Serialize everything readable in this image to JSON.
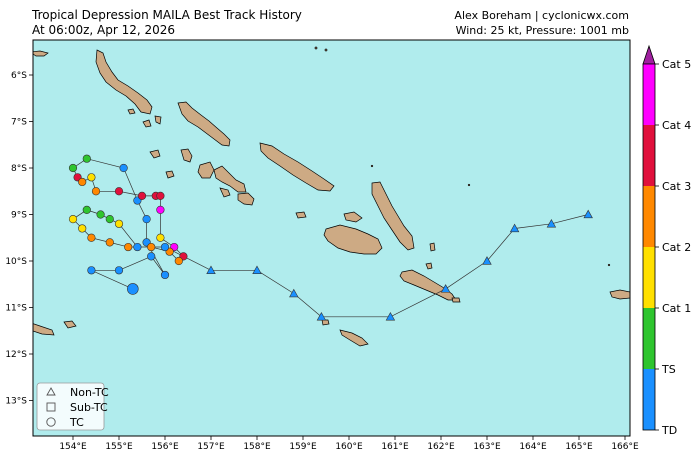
{
  "header": {
    "title_line1": "Tropical Depression MAILA Best Track History",
    "title_line2": "At 06:00z, Apr 12, 2026",
    "credit_line1": "Alex Boreham | cyclonicwx.com",
    "credit_line2": "Wind: 25 kt, Pressure: 1001 mb"
  },
  "map": {
    "lon_labels": [
      "154°E",
      "155°E",
      "156°E",
      "157°E",
      "158°E",
      "159°E",
      "160°E",
      "161°E",
      "162°E",
      "163°E",
      "164°E",
      "165°E",
      "166°E"
    ],
    "lat_labels": [
      "6°S",
      "7°S",
      "8°S",
      "9°S",
      "10°S",
      "11°S",
      "12°S",
      "13°S"
    ],
    "ocean_color": "#b0eced",
    "land_color": "#cdaa84"
  },
  "colorbar": {
    "labels": [
      "Cat 5",
      "Cat 4",
      "Cat 3",
      "Cat 2",
      "Cat 1",
      "TS",
      "TD"
    ],
    "colors": [
      "#ff00ff",
      "#e0103c",
      "#ff8800",
      "#ffe000",
      "#2ec52e",
      "#1a90ff"
    ],
    "arrow_color": "#a020a0"
  },
  "legend": {
    "items": [
      {
        "label": "Non-TC",
        "symbol": "triangle"
      },
      {
        "label": "Sub-TC",
        "symbol": "square"
      },
      {
        "label": "TC",
        "symbol": "circle"
      }
    ]
  },
  "track": {
    "colors": {
      "TD": "#1a90ff",
      "TS": "#2ec52e",
      "C1": "#ffe000",
      "C2": "#ff8800",
      "C3": "#e0103c",
      "C5": "#ff00ff"
    },
    "points": [
      {
        "lon": 155.3,
        "lat": -10.6,
        "cat": "TD",
        "sym": "circle",
        "big": true
      },
      {
        "lon": 154.4,
        "lat": -10.2,
        "cat": "TD",
        "sym": "circle"
      },
      {
        "lon": 155.0,
        "lat": -10.2,
        "cat": "TD",
        "sym": "circle"
      },
      {
        "lon": 155.7,
        "lat": -9.9,
        "cat": "TD",
        "sym": "circle"
      },
      {
        "lon": 156.0,
        "lat": -10.3,
        "cat": "TD",
        "sym": "circle"
      },
      {
        "lon": 155.6,
        "lat": -9.6,
        "cat": "TD",
        "sym": "circle"
      },
      {
        "lon": 155.6,
        "lat": -9.1,
        "cat": "TD",
        "sym": "circle"
      },
      {
        "lon": 155.4,
        "lat": -8.7,
        "cat": "TD",
        "sym": "circle"
      },
      {
        "lon": 155.1,
        "lat": -8.0,
        "cat": "TD",
        "sym": "circle"
      },
      {
        "lon": 154.3,
        "lat": -7.8,
        "cat": "TS",
        "sym": "circle"
      },
      {
        "lon": 154.0,
        "lat": -8.0,
        "cat": "TS",
        "sym": "circle"
      },
      {
        "lon": 154.1,
        "lat": -8.2,
        "cat": "C3",
        "sym": "circle"
      },
      {
        "lon": 154.2,
        "lat": -8.3,
        "cat": "C2",
        "sym": "circle"
      },
      {
        "lon": 154.4,
        "lat": -8.2,
        "cat": "C1",
        "sym": "circle"
      },
      {
        "lon": 154.5,
        "lat": -8.5,
        "cat": "C2",
        "sym": "circle"
      },
      {
        "lon": 155.0,
        "lat": -8.5,
        "cat": "C3",
        "sym": "circle"
      },
      {
        "lon": 155.5,
        "lat": -8.6,
        "cat": "C3",
        "sym": "circle"
      },
      {
        "lon": 155.8,
        "lat": -8.6,
        "cat": "C3",
        "sym": "circle"
      },
      {
        "lon": 155.9,
        "lat": -8.6,
        "cat": "C3",
        "sym": "circle"
      },
      {
        "lon": 155.9,
        "lat": -8.9,
        "cat": "C5",
        "sym": "circle"
      },
      {
        "lon": 155.9,
        "lat": -9.5,
        "cat": "C1",
        "sym": "circle"
      },
      {
        "lon": 156.2,
        "lat": -9.7,
        "cat": "C5",
        "sym": "circle"
      },
      {
        "lon": 156.4,
        "lat": -9.9,
        "cat": "C3",
        "sym": "circle"
      },
      {
        "lon": 156.3,
        "lat": -10.0,
        "cat": "C2",
        "sym": "circle"
      },
      {
        "lon": 156.1,
        "lat": -9.8,
        "cat": "C2",
        "sym": "circle"
      },
      {
        "lon": 155.7,
        "lat": -9.7,
        "cat": "C2",
        "sym": "circle"
      },
      {
        "lon": 155.2,
        "lat": -9.7,
        "cat": "C2",
        "sym": "circle"
      },
      {
        "lon": 154.8,
        "lat": -9.6,
        "cat": "C2",
        "sym": "circle"
      },
      {
        "lon": 154.4,
        "lat": -9.5,
        "cat": "C2",
        "sym": "circle"
      },
      {
        "lon": 154.2,
        "lat": -9.3,
        "cat": "C1",
        "sym": "circle"
      },
      {
        "lon": 154.0,
        "lat": -9.1,
        "cat": "C1",
        "sym": "circle"
      },
      {
        "lon": 154.3,
        "lat": -8.9,
        "cat": "TS",
        "sym": "circle"
      },
      {
        "lon": 154.6,
        "lat": -9.0,
        "cat": "TS",
        "sym": "circle"
      },
      {
        "lon": 154.8,
        "lat": -9.1,
        "cat": "TS",
        "sym": "circle"
      },
      {
        "lon": 155.0,
        "lat": -9.2,
        "cat": "C1",
        "sym": "circle"
      },
      {
        "lon": 155.4,
        "lat": -9.7,
        "cat": "TD",
        "sym": "circle"
      },
      {
        "lon": 156.0,
        "lat": -9.7,
        "cat": "TD",
        "sym": "circle"
      },
      {
        "lon": 157.0,
        "lat": -10.2,
        "cat": "TD",
        "sym": "triangle"
      },
      {
        "lon": 158.0,
        "lat": -10.2,
        "cat": "TD",
        "sym": "triangle"
      },
      {
        "lon": 158.8,
        "lat": -10.7,
        "cat": "TD",
        "sym": "triangle"
      },
      {
        "lon": 159.4,
        "lat": -11.2,
        "cat": "TD",
        "sym": "triangle"
      },
      {
        "lon": 160.9,
        "lat": -11.2,
        "cat": "TD",
        "sym": "triangle"
      },
      {
        "lon": 162.1,
        "lat": -10.6,
        "cat": "TD",
        "sym": "triangle"
      },
      {
        "lon": 163.0,
        "lat": -10.0,
        "cat": "TD",
        "sym": "triangle"
      },
      {
        "lon": 163.6,
        "lat": -9.3,
        "cat": "TD",
        "sym": "triangle"
      },
      {
        "lon": 164.4,
        "lat": -9.2,
        "cat": "TD",
        "sym": "triangle"
      },
      {
        "lon": 165.2,
        "lat": -9.0,
        "cat": "TD",
        "sym": "triangle"
      }
    ]
  }
}
